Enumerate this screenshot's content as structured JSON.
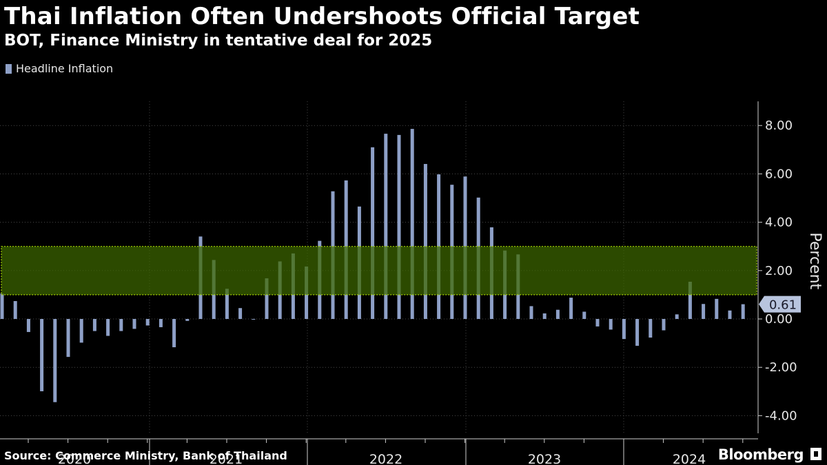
{
  "title": "Thai Inflation Often Undershoots Official Target",
  "subtitle": "BOT, Finance Ministry in tentative deal for 2025",
  "legend_label": "Headline Inflation",
  "source": "Source: Commerce Ministry, Bank of Thailand",
  "brand": "Bloomberg",
  "colors": {
    "bar": "#8ea0c7",
    "band": "#3d6600",
    "band_edge": "#a8d400",
    "background": "#000000",
    "grid": "#4a4a4a"
  },
  "chart_data": {
    "type": "bar",
    "ylabel": "Percent",
    "ylim": [
      -4.5,
      9.0
    ],
    "y_ticks": [
      -4,
      -2,
      0,
      2,
      4,
      6,
      8
    ],
    "y_tick_labels": [
      "-4.00",
      "-2.00",
      "0.00",
      "2.00",
      "4.00",
      "6.00",
      "8.00"
    ],
    "year_labels": [
      "2020",
      "2021",
      "2022",
      "2023",
      "2024"
    ],
    "target_band": [
      1,
      3
    ],
    "last_value_label": "0.61",
    "series": [
      {
        "values": [
          1.05,
          0.74,
          -0.54,
          -2.99,
          -3.44,
          -1.57,
          -0.98,
          -0.5,
          -0.7,
          -0.5,
          -0.41,
          -0.27,
          -0.34,
          -1.17,
          -0.08,
          3.41,
          2.44,
          1.25,
          0.45,
          -0.02,
          1.68,
          2.38,
          2.71,
          2.17,
          3.23,
          5.28,
          5.73,
          4.65,
          7.1,
          7.66,
          7.61,
          7.86,
          6.41,
          5.98,
          5.55,
          5.89,
          5.02,
          3.79,
          2.83,
          2.67,
          0.53,
          0.23,
          0.38,
          0.88,
          0.3,
          -0.31,
          -0.44,
          -0.83,
          -1.11,
          -0.77,
          -0.47,
          0.19,
          1.54,
          0.62,
          0.83,
          0.35,
          0.61
        ]
      }
    ]
  }
}
